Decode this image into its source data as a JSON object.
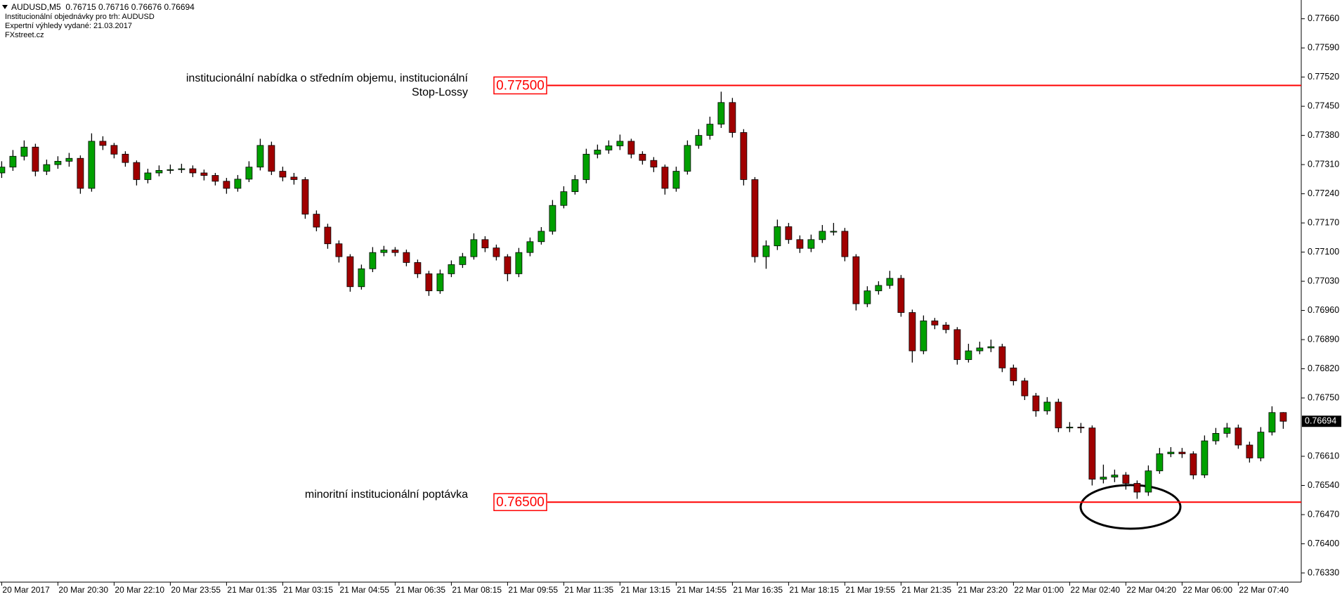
{
  "chart_data": {
    "type": "candlestick",
    "title": "AUDUSD,M5  0.76715 0.76716 0.76676 0.76694",
    "subtitle": [
      "Institucionální objednávky pro trh: AUDUSD",
      "Expertní výhledy vydané: 21.03.2017",
      "FXstreet.cz"
    ],
    "up_color": "#00a000",
    "down_color": "#a00000",
    "wick_color": "#000000",
    "ylim": [
      0.76308,
      0.77705
    ],
    "yticks": [
      {
        "value": 0.7766,
        "label": "0.77660"
      },
      {
        "value": 0.7759,
        "label": "0.77590"
      },
      {
        "value": 0.7752,
        "label": "0.77520"
      },
      {
        "value": 0.7745,
        "label": "0.77450"
      },
      {
        "value": 0.7738,
        "label": "0.77380"
      },
      {
        "value": 0.7731,
        "label": "0.77310"
      },
      {
        "value": 0.7724,
        "label": "0.77240"
      },
      {
        "value": 0.7717,
        "label": "0.77170"
      },
      {
        "value": 0.771,
        "label": "0.77100"
      },
      {
        "value": 0.7703,
        "label": "0.77030"
      },
      {
        "value": 0.7696,
        "label": "0.76960"
      },
      {
        "value": 0.7689,
        "label": "0.76890"
      },
      {
        "value": 0.7682,
        "label": "0.76820"
      },
      {
        "value": 0.7675,
        "label": "0.76750"
      },
      {
        "value": 0.7661,
        "label": "0.76610"
      },
      {
        "value": 0.7654,
        "label": "0.76540"
      },
      {
        "value": 0.7647,
        "label": "0.76470"
      },
      {
        "value": 0.764,
        "label": "0.76400"
      },
      {
        "value": 0.7633,
        "label": "0.76330"
      }
    ],
    "xlim": [
      -0.15,
      115.6
    ],
    "xticks": [
      {
        "value": 0,
        "label": "20 Mar 2017"
      },
      {
        "value": 5,
        "label": "20 Mar 20:30"
      },
      {
        "value": 10,
        "label": "20 Mar 22:10"
      },
      {
        "value": 15,
        "label": "20 Mar 23:55"
      },
      {
        "value": 20,
        "label": "21 Mar 01:35"
      },
      {
        "value": 25,
        "label": "21 Mar 03:15"
      },
      {
        "value": 30,
        "label": "21 Mar 04:55"
      },
      {
        "value": 35,
        "label": "21 Mar 06:35"
      },
      {
        "value": 40,
        "label": "21 Mar 08:15"
      },
      {
        "value": 45,
        "label": "21 Mar 09:55"
      },
      {
        "value": 50,
        "label": "21 Mar 11:35"
      },
      {
        "value": 55,
        "label": "21 Mar 13:15"
      },
      {
        "value": 60,
        "label": "21 Mar 14:55"
      },
      {
        "value": 65,
        "label": "21 Mar 16:35"
      },
      {
        "value": 70,
        "label": "21 Mar 18:15"
      },
      {
        "value": 75,
        "label": "21 Mar 19:55"
      },
      {
        "value": 80,
        "label": "21 Mar 21:35"
      },
      {
        "value": 85,
        "label": "21 Mar 23:20"
      },
      {
        "value": 90,
        "label": "22 Mar 01:00"
      },
      {
        "value": 95,
        "label": "22 Mar 02:40"
      },
      {
        "value": 100,
        "label": "22 Mar 04:20"
      },
      {
        "value": 105,
        "label": "22 Mar 06:00"
      },
      {
        "value": 110,
        "label": "22 Mar 07:40"
      }
    ],
    "last_price": {
      "value": 0.76694,
      "label": "0.76694"
    },
    "levels": [
      {
        "value": 0.775,
        "label": "0.77500",
        "text": "institucionální nabídka o středním objemu, institucionální Stop-Lossy",
        "color": "#ff0000"
      },
      {
        "value": 0.765,
        "label": "0.76500",
        "text": "minoritní institucionální poptávka",
        "color": "#ff0000"
      }
    ],
    "ohlc": [
      [
        0.7729,
        0.77318,
        0.77278,
        0.77304
      ],
      [
        0.77304,
        0.77345,
        0.77295,
        0.7733
      ],
      [
        0.7733,
        0.77368,
        0.7732,
        0.77352
      ],
      [
        0.77352,
        0.7736,
        0.77282,
        0.77294
      ],
      [
        0.77294,
        0.77322,
        0.77285,
        0.7731
      ],
      [
        0.7731,
        0.7733,
        0.773,
        0.77318
      ],
      [
        0.77318,
        0.77338,
        0.77305,
        0.77325
      ],
      [
        0.77325,
        0.77332,
        0.7724,
        0.77253
      ],
      [
        0.77253,
        0.77385,
        0.77245,
        0.77366
      ],
      [
        0.77366,
        0.77378,
        0.77345,
        0.77356
      ],
      [
        0.77356,
        0.77362,
        0.77325,
        0.77335
      ],
      [
        0.77335,
        0.77342,
        0.77305,
        0.77315
      ],
      [
        0.77315,
        0.7732,
        0.7726,
        0.77274
      ],
      [
        0.77274,
        0.773,
        0.77265,
        0.7729
      ],
      [
        0.7729,
        0.77308,
        0.77282,
        0.77296
      ],
      [
        0.77296,
        0.7731,
        0.77288,
        0.77298
      ],
      [
        0.77298,
        0.77312,
        0.7729,
        0.773
      ],
      [
        0.773,
        0.77308,
        0.7728,
        0.7729
      ],
      [
        0.7729,
        0.77298,
        0.77272,
        0.77284
      ],
      [
        0.77284,
        0.7729,
        0.7726,
        0.7727
      ],
      [
        0.7727,
        0.77278,
        0.7724,
        0.77253
      ],
      [
        0.77253,
        0.77285,
        0.77245,
        0.77275
      ],
      [
        0.77275,
        0.77318,
        0.77268,
        0.77304
      ],
      [
        0.77304,
        0.77372,
        0.77296,
        0.77356
      ],
      [
        0.77356,
        0.77365,
        0.77285,
        0.77294
      ],
      [
        0.77294,
        0.77305,
        0.7727,
        0.7728
      ],
      [
        0.7728,
        0.7729,
        0.77262,
        0.77274
      ],
      [
        0.77274,
        0.7728,
        0.7718,
        0.77191
      ],
      [
        0.77191,
        0.772,
        0.7715,
        0.7716
      ],
      [
        0.7716,
        0.77168,
        0.77108,
        0.7712
      ],
      [
        0.7712,
        0.77128,
        0.77075,
        0.77089
      ],
      [
        0.77089,
        0.77095,
        0.77005,
        0.77017
      ],
      [
        0.77017,
        0.7707,
        0.7701,
        0.7706
      ],
      [
        0.7706,
        0.77112,
        0.77052,
        0.77099
      ],
      [
        0.77099,
        0.77115,
        0.7709,
        0.77105
      ],
      [
        0.77105,
        0.77112,
        0.7709,
        0.77099
      ],
      [
        0.77099,
        0.77106,
        0.77066,
        0.77075
      ],
      [
        0.77075,
        0.77082,
        0.77038,
        0.77048
      ],
      [
        0.77048,
        0.77055,
        0.76995,
        0.77007
      ],
      [
        0.77007,
        0.77058,
        0.77,
        0.77048
      ],
      [
        0.77048,
        0.7708,
        0.7704,
        0.7707
      ],
      [
        0.7707,
        0.77098,
        0.77062,
        0.77089
      ],
      [
        0.77089,
        0.77145,
        0.77082,
        0.7713
      ],
      [
        0.7713,
        0.77138,
        0.771,
        0.7711
      ],
      [
        0.7711,
        0.77118,
        0.7708,
        0.77089
      ],
      [
        0.77089,
        0.77095,
        0.7703,
        0.77048
      ],
      [
        0.77048,
        0.7711,
        0.7704,
        0.77099
      ],
      [
        0.77099,
        0.77135,
        0.7709,
        0.77125
      ],
      [
        0.77125,
        0.7716,
        0.77118,
        0.7715
      ],
      [
        0.7715,
        0.77225,
        0.77142,
        0.77212
      ],
      [
        0.77212,
        0.77258,
        0.77205,
        0.77245
      ],
      [
        0.77245,
        0.77285,
        0.77238,
        0.77274
      ],
      [
        0.77274,
        0.77348,
        0.77265,
        0.77335
      ],
      [
        0.77335,
        0.77358,
        0.77325,
        0.77345
      ],
      [
        0.77345,
        0.77368,
        0.77336,
        0.77355
      ],
      [
        0.77355,
        0.77382,
        0.77345,
        0.77366
      ],
      [
        0.77366,
        0.77372,
        0.77325,
        0.77335
      ],
      [
        0.77335,
        0.77342,
        0.7731,
        0.7732
      ],
      [
        0.7732,
        0.77328,
        0.77292,
        0.77304
      ],
      [
        0.77304,
        0.7731,
        0.77238,
        0.77253
      ],
      [
        0.77253,
        0.77305,
        0.77245,
        0.77294
      ],
      [
        0.77294,
        0.77368,
        0.77286,
        0.77356
      ],
      [
        0.77356,
        0.77395,
        0.77348,
        0.7738
      ],
      [
        0.7738,
        0.77425,
        0.7737,
        0.77407
      ],
      [
        0.77407,
        0.77485,
        0.77398,
        0.77459
      ],
      [
        0.77459,
        0.7747,
        0.77375,
        0.77387
      ],
      [
        0.77387,
        0.77395,
        0.7726,
        0.77274
      ],
      [
        0.77274,
        0.7728,
        0.77075,
        0.77089
      ],
      [
        0.77089,
        0.77128,
        0.7706,
        0.77115
      ],
      [
        0.77115,
        0.77178,
        0.77105,
        0.77161
      ],
      [
        0.77161,
        0.7717,
        0.7712,
        0.7713
      ],
      [
        0.7713,
        0.7714,
        0.77098,
        0.77109
      ],
      [
        0.77109,
        0.77142,
        0.771,
        0.7713
      ],
      [
        0.7713,
        0.77165,
        0.77122,
        0.7715
      ],
      [
        0.7715,
        0.7717,
        0.7714,
        0.7715
      ],
      [
        0.7715,
        0.77158,
        0.77078,
        0.77089
      ],
      [
        0.77089,
        0.77095,
        0.7696,
        0.76976
      ],
      [
        0.76976,
        0.77018,
        0.76968,
        0.77007
      ],
      [
        0.77007,
        0.7703,
        0.76998,
        0.7702
      ],
      [
        0.7702,
        0.77055,
        0.77012,
        0.77037
      ],
      [
        0.77037,
        0.77045,
        0.76945,
        0.76955
      ],
      [
        0.76955,
        0.76962,
        0.76835,
        0.76863
      ],
      [
        0.76863,
        0.76948,
        0.76855,
        0.76935
      ],
      [
        0.76935,
        0.76942,
        0.76915,
        0.76925
      ],
      [
        0.76925,
        0.76932,
        0.76905,
        0.76914
      ],
      [
        0.76914,
        0.7692,
        0.7683,
        0.76842
      ],
      [
        0.76842,
        0.7688,
        0.76835,
        0.76863
      ],
      [
        0.76863,
        0.76885,
        0.76855,
        0.7687
      ],
      [
        0.7687,
        0.7689,
        0.7686,
        0.76873
      ],
      [
        0.76873,
        0.7688,
        0.76812,
        0.76822
      ],
      [
        0.76822,
        0.7683,
        0.7678,
        0.76791
      ],
      [
        0.76791,
        0.76798,
        0.76745,
        0.76755
      ],
      [
        0.76755,
        0.76762,
        0.76705,
        0.76719
      ],
      [
        0.76719,
        0.76752,
        0.7671,
        0.7674
      ],
      [
        0.7674,
        0.76748,
        0.76668,
        0.76678
      ],
      [
        0.76678,
        0.76692,
        0.76668,
        0.7668
      ],
      [
        0.7668,
        0.7669,
        0.76666,
        0.76678
      ],
      [
        0.76678,
        0.76684,
        0.7654,
        0.76555
      ],
      [
        0.76555,
        0.7659,
        0.76545,
        0.7656
      ],
      [
        0.7656,
        0.76578,
        0.76548,
        0.76565
      ],
      [
        0.76565,
        0.76572,
        0.7653,
        0.76545
      ],
      [
        0.76545,
        0.76552,
        0.76508,
        0.76524
      ],
      [
        0.76524,
        0.76588,
        0.76515,
        0.76575
      ],
      [
        0.76575,
        0.7663,
        0.76568,
        0.76616
      ],
      [
        0.76616,
        0.76632,
        0.76608,
        0.7662
      ],
      [
        0.7662,
        0.7663,
        0.76606,
        0.76616
      ],
      [
        0.76616,
        0.76622,
        0.76555,
        0.76565
      ],
      [
        0.76565,
        0.7666,
        0.76558,
        0.76647
      ],
      [
        0.76647,
        0.76678,
        0.76638,
        0.76665
      ],
      [
        0.76665,
        0.7669,
        0.76655,
        0.76678
      ],
      [
        0.76678,
        0.76686,
        0.76628,
        0.76637
      ],
      [
        0.76637,
        0.76645,
        0.76595,
        0.76606
      ],
      [
        0.76606,
        0.7668,
        0.76598,
        0.76668
      ],
      [
        0.76668,
        0.7673,
        0.7666,
        0.76715
      ],
      [
        0.76715,
        0.76716,
        0.76676,
        0.76694
      ]
    ]
  }
}
